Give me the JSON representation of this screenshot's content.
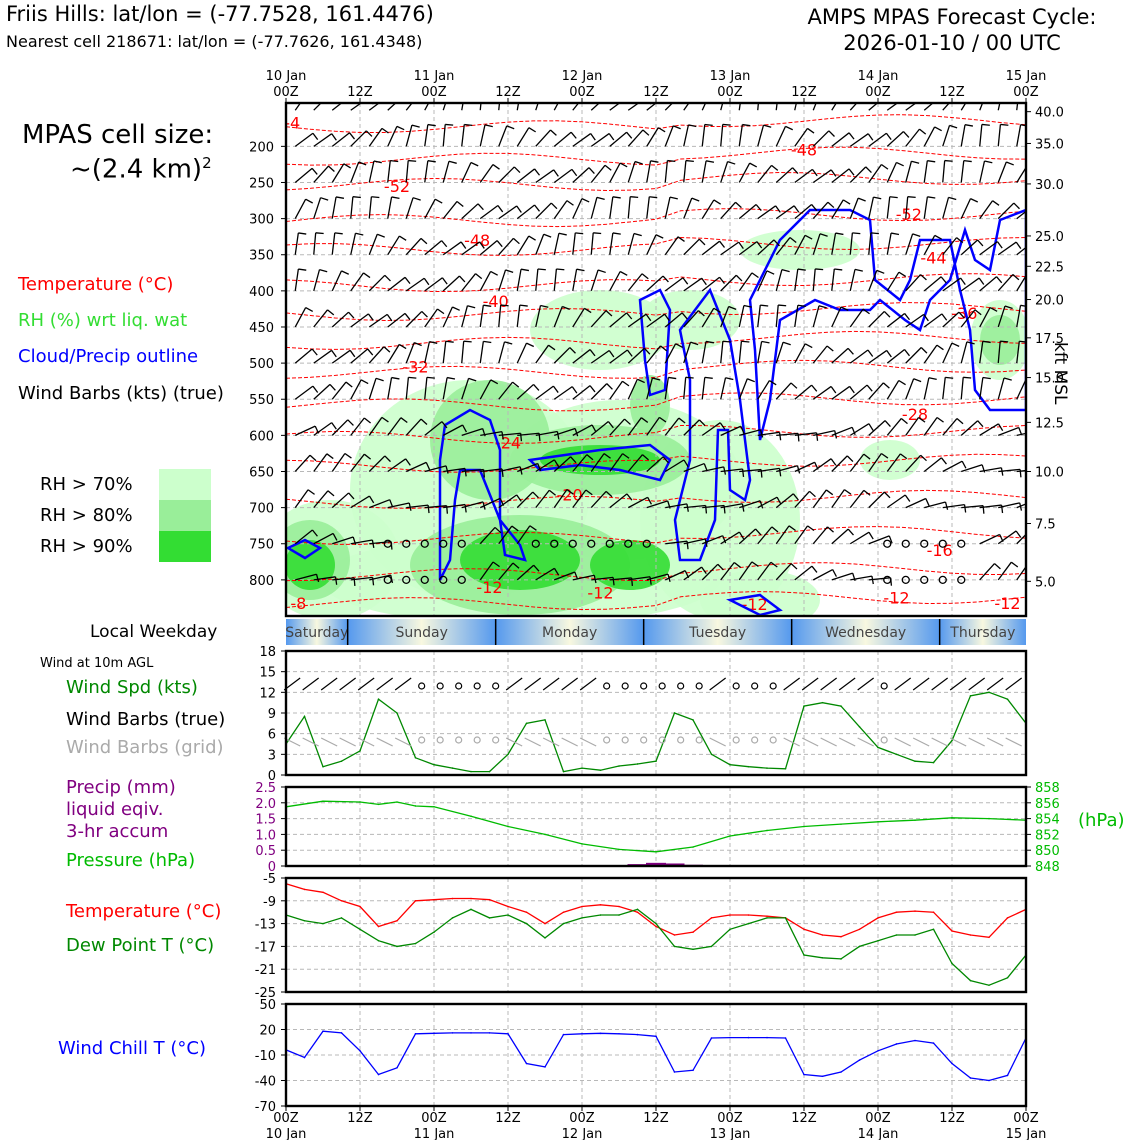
{
  "header": {
    "station_line": "Friis Hills: lat/lon = (-77.7528, 161.4476)",
    "cell_line": "Nearest cell 218671: lat/lon = (-77.7626, 161.4348)",
    "forecast_label": "AMPS MPAS Forecast Cycle:",
    "forecast_cycle": "2026-01-10 / 00 UTC"
  },
  "legend": {
    "cell_size_label": "MPAS cell size:",
    "cell_size_value": "~(2.4 km)",
    "cell_size_sup": "2",
    "temperature": "Temperature (°C)",
    "rh": "RH (%) wrt liq. wat",
    "cloud": "Cloud/Precip outline",
    "barbs": "Wind Barbs (kts) (true)",
    "rh70": "RH > 70%",
    "rh80": "RH > 80%",
    "rh90": "RH > 90%",
    "rh70_color": "#ccffcc",
    "rh80_color": "#99ee99",
    "rh90_color": "#33dd33",
    "local_weekday": "Local Weekday",
    "wind10m": "Wind at 10m AGL",
    "wind_spd": "Wind Spd (kts)",
    "wind_barbs_true": "Wind Barbs (true)",
    "wind_barbs_grid": "Wind Barbs (grid)",
    "precip1": "Precip (mm)",
    "precip2": "liquid eqiv.",
    "precip3": "3-hr accum",
    "pressure": "Pressure (hPa)",
    "temp2": "Temperature (°C)",
    "dewpoint": "Dew Point T (°C)",
    "windchill": "Wind Chill T (°C)",
    "hpa_unit": "(hPa)",
    "kft_label": "kft MSL"
  },
  "colors": {
    "temp": "#ff0000",
    "rh": "#33dd33",
    "cloud": "#0000ff",
    "wind_spd": "#008800",
    "barbs_grid": "#aaaaaa",
    "precip": "#800080",
    "pressure": "#00bb00",
    "dew": "#008800",
    "chill": "#0000ff",
    "weekday_blue": "#5599ee",
    "weekday_cream": "#f8f8e0"
  },
  "chart_data": {
    "type": "line",
    "time_ticks_top": [
      {
        "day": "10 Jan",
        "hr": "00Z"
      },
      {
        "day": "",
        "hr": "12Z"
      },
      {
        "day": "11 Jan",
        "hr": "00Z"
      },
      {
        "day": "",
        "hr": "12Z"
      },
      {
        "day": "12 Jan",
        "hr": "00Z"
      },
      {
        "day": "",
        "hr": "12Z"
      },
      {
        "day": "13 Jan",
        "hr": "00Z"
      },
      {
        "day": "",
        "hr": "12Z"
      },
      {
        "day": "14 Jan",
        "hr": "00Z"
      },
      {
        "day": "",
        "hr": "12Z"
      },
      {
        "day": "15 Jan",
        "hr": "00Z"
      }
    ],
    "time_ticks_bottom": [
      {
        "hr": "00Z",
        "day": "10 Jan"
      },
      {
        "hr": "12Z",
        "day": ""
      },
      {
        "hr": "00Z",
        "day": "11 Jan"
      },
      {
        "hr": "12Z",
        "day": ""
      },
      {
        "hr": "00Z",
        "day": "12 Jan"
      },
      {
        "hr": "12Z",
        "day": ""
      },
      {
        "hr": "00Z",
        "day": "13 Jan"
      },
      {
        "hr": "12Z",
        "day": ""
      },
      {
        "hr": "00Z",
        "day": "14 Jan"
      },
      {
        "hr": "12Z",
        "day": ""
      },
      {
        "hr": "00Z",
        "day": "15 Jan"
      }
    ],
    "hours_range": [
      0,
      120
    ],
    "weekdays": [
      "Saturday",
      "Sunday",
      "Monday",
      "Tuesday",
      "Wednesday",
      "Thursday"
    ],
    "weekday_boundaries_hours": [
      10,
      34,
      58,
      82,
      106
    ],
    "cross_section": {
      "pressure_range_hpa": [
        140,
        850
      ],
      "pressure_ticks": [
        "200",
        "250",
        "300",
        "350",
        "400",
        "450",
        "500",
        "550",
        "600",
        "650",
        "700",
        "750",
        "800"
      ],
      "pressure_tick_values": [
        200,
        250,
        300,
        350,
        400,
        450,
        500,
        550,
        600,
        650,
        700,
        750,
        800
      ],
      "kft_ticks": [
        "40.0",
        "35.0",
        "30.0",
        "25.0",
        "22.5",
        "20.0",
        "17.5",
        "15.0",
        "12.5",
        "10.0",
        "7.5",
        "5.0"
      ],
      "kft_tick_pressure": [
        152,
        196,
        252,
        324,
        366,
        412,
        465,
        520,
        582,
        650,
        722,
        802
      ],
      "temperature_contours": [
        {
          "label": "-4",
          "hour": 1,
          "p": 175
        },
        {
          "label": "-8",
          "hour": 2,
          "p": 840
        },
        {
          "label": "-12",
          "hour": 33,
          "p": 818
        },
        {
          "label": "-12",
          "hour": 51,
          "p": 826
        },
        {
          "label": "-12",
          "hour": 76,
          "p": 842
        },
        {
          "label": "-12",
          "hour": 99,
          "p": 833
        },
        {
          "label": "-12",
          "hour": 117,
          "p": 840
        },
        {
          "label": "-16",
          "hour": 106,
          "p": 767
        },
        {
          "label": "-20",
          "hour": 46,
          "p": 690
        },
        {
          "label": "-24",
          "hour": 36,
          "p": 618
        },
        {
          "label": "-28",
          "hour": 102,
          "p": 579
        },
        {
          "label": "-32",
          "hour": 21,
          "p": 513
        },
        {
          "label": "-36",
          "hour": 110,
          "p": 439
        },
        {
          "label": "-40",
          "hour": 34,
          "p": 422
        },
        {
          "label": "-44",
          "hour": 105,
          "p": 362
        },
        {
          "label": "-48",
          "hour": 31,
          "p": 338
        },
        {
          "label": "-48",
          "hour": 84,
          "p": 213
        },
        {
          "label": "-52",
          "hour": 18,
          "p": 263
        },
        {
          "label": "-52",
          "hour": 101,
          "p": 302
        }
      ],
      "rh_levels": [
        70,
        80,
        90
      ],
      "calm_rows_hpa": [
        725,
        775,
        825
      ]
    },
    "wind10m": {
      "ylim": [
        0,
        18
      ],
      "yticks": [
        0,
        3,
        6,
        9,
        12,
        15,
        18
      ],
      "hours": [
        0,
        3,
        6,
        9,
        12,
        15,
        18,
        21,
        24,
        27,
        30,
        33,
        36,
        39,
        42,
        45,
        48,
        51,
        54,
        57,
        60,
        63,
        66,
        69,
        72,
        75,
        78,
        81,
        84,
        87,
        90,
        93,
        96,
        99,
        102,
        105,
        108,
        111,
        114,
        117,
        120
      ],
      "speed_kts": [
        4.5,
        8.5,
        1.2,
        2,
        3.5,
        11,
        9,
        2.5,
        1.5,
        1,
        0.5,
        0.5,
        3,
        7.5,
        8,
        0.5,
        1,
        0.7,
        1.3,
        1.6,
        2,
        9,
        8,
        3,
        1.5,
        1.2,
        1,
        0.9,
        10,
        10.5,
        10,
        7,
        4,
        3,
        2,
        1.8,
        5,
        11.5,
        12,
        11,
        7.5
      ]
    },
    "pressure_precip": {
      "precip_ylim": [
        0,
        2.5
      ],
      "precip_ticks": [
        "0",
        "0.5",
        "1.0",
        "1.5",
        "2.0",
        "2.5"
      ],
      "precip_tick_values": [
        0,
        0.5,
        1.0,
        1.5,
        2.0,
        2.5
      ],
      "pressure_ylim": [
        848,
        858
      ],
      "pressure_ticks": [
        "848",
        "850",
        "852",
        "854",
        "856",
        "858"
      ],
      "pressure_tick_values": [
        848,
        850,
        852,
        854,
        856,
        858
      ],
      "hours": [
        0,
        6,
        12,
        15,
        18,
        21,
        24,
        30,
        36,
        42,
        48,
        54,
        60,
        66,
        72,
        78,
        84,
        90,
        96,
        102,
        108,
        114,
        120
      ],
      "pressure_hpa": [
        855.5,
        856.2,
        856.1,
        855.8,
        856.1,
        855.6,
        855.5,
        854.3,
        853.0,
        852.0,
        850.8,
        850.1,
        849.8,
        850.4,
        851.8,
        852.5,
        853.0,
        853.3,
        853.6,
        853.8,
        854.1,
        854.0,
        853.8
      ],
      "precip_hours": [
        54,
        57,
        60,
        63,
        66,
        69
      ],
      "precip_mm": [
        0.02,
        0.06,
        0.1,
        0.08,
        0.04,
        0.02
      ]
    },
    "temp_dew": {
      "ylim": [
        -25,
        -5
      ],
      "yticks": [
        -25,
        -21,
        -17,
        -13,
        -9,
        -5
      ],
      "hours": [
        0,
        3,
        6,
        9,
        12,
        15,
        18,
        21,
        24,
        27,
        30,
        33,
        36,
        39,
        42,
        45,
        48,
        51,
        54,
        57,
        60,
        63,
        66,
        69,
        72,
        75,
        78,
        81,
        84,
        87,
        90,
        93,
        96,
        99,
        102,
        105,
        108,
        111,
        114,
        117,
        120
      ],
      "temperature_c": [
        -6,
        -7,
        -7.5,
        -9,
        -10,
        -13.5,
        -12.5,
        -9,
        -8.8,
        -8.6,
        -8.6,
        -8.8,
        -10,
        -11,
        -13,
        -11,
        -10,
        -9.7,
        -10,
        -11,
        -13.5,
        -15,
        -14.5,
        -12,
        -11.5,
        -11.5,
        -11.7,
        -12,
        -14,
        -15,
        -15.3,
        -14,
        -12,
        -11,
        -10.8,
        -11,
        -14.3,
        -15,
        -15.4,
        -12,
        -10.5
      ],
      "dewpoint_c": [
        -11.5,
        -12.5,
        -13,
        -12,
        -14,
        -16,
        -17,
        -16.5,
        -14.5,
        -12,
        -10.5,
        -12,
        -11.5,
        -13,
        -15.5,
        -13,
        -12,
        -11.5,
        -11.5,
        -10.5,
        -13,
        -17,
        -17.5,
        -17,
        -14,
        -13,
        -12,
        -12,
        -18.5,
        -19,
        -19.2,
        -17,
        -16,
        -15,
        -15,
        -14,
        -20,
        -23,
        -23.8,
        -22.5,
        -18.5
      ]
    },
    "wind_chill": {
      "ylim": [
        -70,
        50
      ],
      "yticks": [
        -70,
        -40,
        -10,
        20,
        50
      ],
      "hours": [
        0,
        3,
        6,
        9,
        12,
        15,
        18,
        21,
        24,
        27,
        30,
        33,
        36,
        39,
        42,
        45,
        48,
        51,
        54,
        57,
        60,
        63,
        66,
        69,
        72,
        75,
        78,
        81,
        84,
        87,
        90,
        93,
        96,
        99,
        102,
        105,
        108,
        111,
        114,
        117,
        120
      ],
      "chill_c": [
        -4,
        -13,
        18,
        16,
        -5,
        -33,
        -25,
        15,
        15.5,
        16,
        16,
        16,
        15,
        -20,
        -24,
        14,
        15,
        15.5,
        15,
        14,
        12,
        -30,
        -28,
        10,
        10.5,
        10.5,
        10.5,
        10,
        -33,
        -35,
        -30,
        -16,
        -5,
        3,
        7,
        4,
        -20,
        -37,
        -40,
        -34,
        10
      ]
    }
  }
}
